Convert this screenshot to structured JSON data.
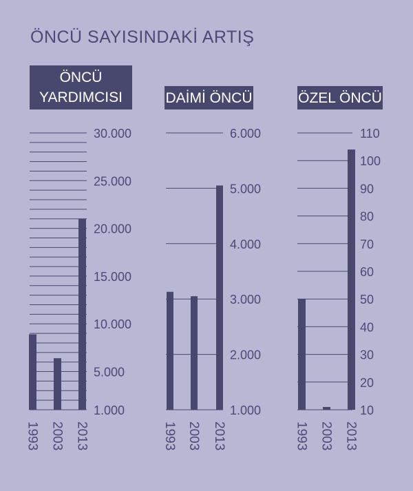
{
  "title": "ÖNCÜ SAYISINDAKİ ARTIŞ",
  "colors": {
    "background": "#b9b8d4",
    "bar": "#48476e",
    "grid": "#48476e",
    "text": "#4a4978",
    "label_box": "#48476e",
    "label_text": "#ffffff"
  },
  "chart_data": [
    {
      "type": "bar",
      "title": "ÖNCÜ\nYARDIMCISI",
      "categories": [
        "1993",
        "2003",
        "2013"
      ],
      "values": [
        8900,
        6400,
        21000
      ],
      "ylim": [
        1000,
        30000
      ],
      "yticks": [
        1000,
        5000,
        10000,
        15000,
        20000,
        25000,
        30000
      ],
      "ytick_labels": [
        "1.000",
        "5.000",
        "10.000",
        "15.000",
        "20.000",
        "25.000",
        "30.000"
      ],
      "grid_step": 1000
    },
    {
      "type": "bar",
      "title": "DAİMİ ÖNCÜ",
      "categories": [
        "1993",
        "2003",
        "2013"
      ],
      "values": [
        3130,
        3050,
        5050
      ],
      "ylim": [
        1000,
        6000
      ],
      "yticks": [
        1000,
        2000,
        3000,
        4000,
        5000,
        6000
      ],
      "ytick_labels": [
        "1.000",
        "2.000",
        "3.000",
        "4.000",
        "5.000",
        "6.000"
      ],
      "grid_step": 1000
    },
    {
      "type": "bar",
      "title": "ÖZEL ÖNCÜ",
      "categories": [
        "1993",
        "2003",
        "2013"
      ],
      "values": [
        50,
        11,
        104
      ],
      "ylim": [
        10,
        110
      ],
      "yticks": [
        10,
        20,
        30,
        40,
        50,
        60,
        70,
        80,
        90,
        100,
        110
      ],
      "ytick_labels": [
        "10",
        "20",
        "30",
        "40",
        "50",
        "60",
        "70",
        "80",
        "90",
        "100",
        "110"
      ],
      "grid_step": 10
    }
  ]
}
